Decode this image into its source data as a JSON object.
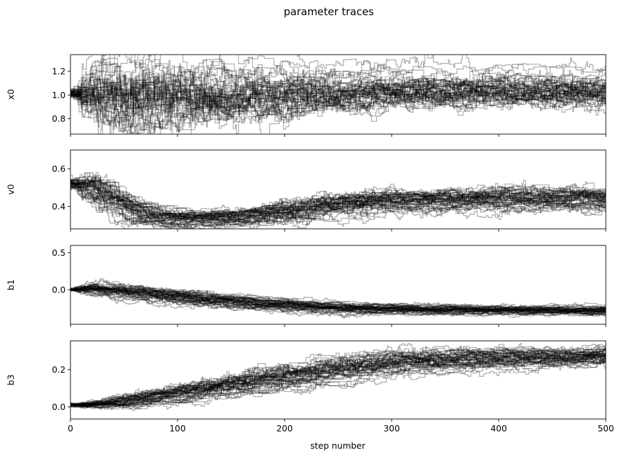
{
  "chart_data": {
    "type": "line",
    "title": "parameter traces",
    "xlabel": "step number",
    "xlim": [
      0,
      500
    ],
    "x_ticks": [
      0,
      100,
      200,
      300,
      400,
      500
    ],
    "line_color": "#000000",
    "line_alpha": 0.3,
    "grid": false,
    "panels": [
      {
        "ylabel": "x0",
        "ylim": [
          0.67,
          1.34
        ],
        "y_ticks": [
          0.8,
          1.0,
          1.2
        ],
        "y_tick_labels": [
          "0.8",
          "1.0",
          "1.2"
        ],
        "series_summary": {
          "steps": [
            0,
            10,
            25,
            50,
            75,
            100,
            150,
            200,
            250,
            300,
            400,
            500
          ],
          "center": [
            1.02,
            1.0,
            0.99,
            0.98,
            0.98,
            0.99,
            1.0,
            1.01,
            1.02,
            1.03,
            1.03,
            1.03
          ],
          "spread": [
            0.03,
            0.18,
            0.26,
            0.28,
            0.27,
            0.24,
            0.2,
            0.16,
            0.13,
            0.12,
            0.11,
            0.11
          ]
        }
      },
      {
        "ylabel": "v0",
        "ylim": [
          0.28,
          0.7
        ],
        "y_ticks": [
          0.4,
          0.6
        ],
        "y_tick_labels": [
          "0.4",
          "0.6"
        ],
        "series_summary": {
          "steps": [
            0,
            10,
            25,
            50,
            75,
            100,
            150,
            200,
            250,
            300,
            400,
            500
          ],
          "center": [
            0.52,
            0.5,
            0.45,
            0.36,
            0.33,
            0.33,
            0.34,
            0.38,
            0.42,
            0.43,
            0.44,
            0.44
          ],
          "spread": [
            0.03,
            0.06,
            0.08,
            0.06,
            0.04,
            0.04,
            0.04,
            0.05,
            0.05,
            0.05,
            0.05,
            0.05
          ]
        }
      },
      {
        "ylabel": "b1",
        "ylim": [
          -0.47,
          0.6
        ],
        "y_ticks": [
          0.0,
          0.5
        ],
        "y_tick_labels": [
          "0.0",
          "0.5"
        ],
        "series_summary": {
          "steps": [
            0,
            10,
            25,
            50,
            75,
            100,
            150,
            200,
            250,
            300,
            400,
            500
          ],
          "center": [
            0.0,
            0.02,
            0.0,
            -0.05,
            -0.08,
            -0.12,
            -0.18,
            -0.23,
            -0.26,
            -0.27,
            -0.28,
            -0.29
          ],
          "spread": [
            0.02,
            0.06,
            0.08,
            0.08,
            0.08,
            0.08,
            0.07,
            0.06,
            0.06,
            0.05,
            0.05,
            0.05
          ]
        }
      },
      {
        "ylabel": "b3",
        "ylim": [
          -0.065,
          0.355
        ],
        "y_ticks": [
          0.0,
          0.2
        ],
        "y_tick_labels": [
          "0.0",
          "0.2"
        ],
        "series_summary": {
          "steps": [
            0,
            10,
            25,
            50,
            75,
            100,
            150,
            200,
            250,
            300,
            400,
            500
          ],
          "center": [
            0.01,
            0.015,
            0.025,
            0.045,
            0.065,
            0.09,
            0.14,
            0.18,
            0.22,
            0.25,
            0.27,
            0.28
          ],
          "spread": [
            0.01,
            0.015,
            0.02,
            0.03,
            0.03,
            0.04,
            0.05,
            0.05,
            0.05,
            0.05,
            0.04,
            0.04
          ]
        }
      }
    ]
  }
}
